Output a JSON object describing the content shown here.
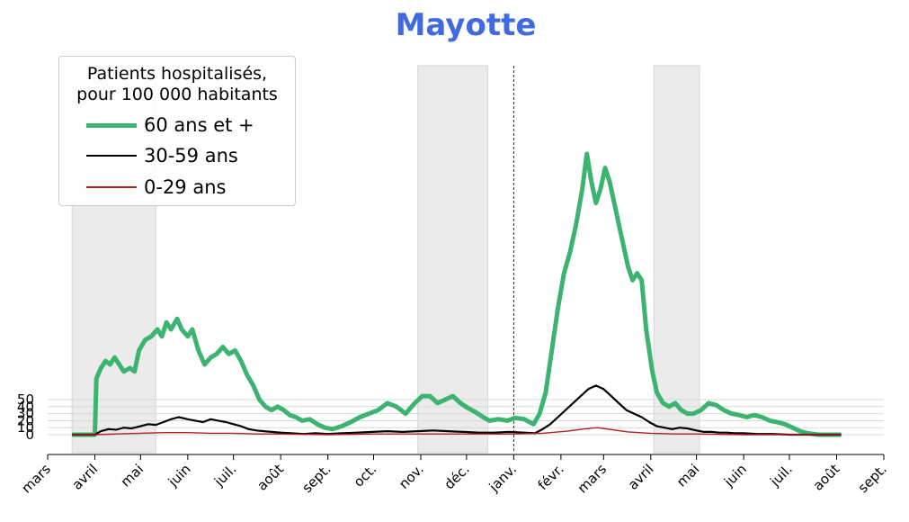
{
  "chart_data": {
    "type": "line",
    "title": "Mayotte",
    "title_color": "#4169e1",
    "legend": {
      "title_lines": [
        "Patients hospitalisés,",
        "pour 100 000 habitants"
      ],
      "placement": "top-left"
    },
    "x_tick_labels": [
      "mars",
      "avril",
      "mai",
      "juin",
      "juil.",
      "août",
      "sept.",
      "oct.",
      "nov.",
      "déc.",
      "janv.",
      "févr.",
      "mars",
      "avril",
      "mai",
      "juin",
      "juil.",
      "août",
      "sept."
    ],
    "x_tick_dates": [
      "2020-03-01",
      "2020-04-01",
      "2020-05-01",
      "2020-06-01",
      "2020-07-01",
      "2020-08-01",
      "2020-09-01",
      "2020-10-01",
      "2020-11-01",
      "2020-12-01",
      "2021-01-01",
      "2021-02-01",
      "2021-03-01",
      "2021-04-01",
      "2021-05-01",
      "2021-06-01",
      "2021-07-01",
      "2021-08-01",
      "2021-09-01"
    ],
    "xlim": [
      "2020-03-01",
      "2021-09-01"
    ],
    "y_ticks": [
      0,
      10,
      20,
      30,
      40,
      50
    ],
    "ylim": [
      -10,
      460
    ],
    "grid": "horizontal",
    "shaded_periods": [
      {
        "start": "2020-03-17",
        "end": "2020-05-11"
      },
      {
        "start": "2020-10-30",
        "end": "2020-12-15"
      },
      {
        "start": "2021-04-03",
        "end": "2021-05-03"
      }
    ],
    "vertical_line_date": "2021-01-01",
    "series": [
      {
        "name": "60 ans et +",
        "color": "#3cb371",
        "points": [
          [
            "2020-03-17",
            0
          ],
          [
            "2020-04-01",
            0
          ],
          [
            "2020-04-02",
            80
          ],
          [
            "2020-04-05",
            95
          ],
          [
            "2020-04-08",
            105
          ],
          [
            "2020-04-11",
            100
          ],
          [
            "2020-04-14",
            110
          ],
          [
            "2020-04-17",
            100
          ],
          [
            "2020-04-20",
            90
          ],
          [
            "2020-04-24",
            95
          ],
          [
            "2020-04-27",
            90
          ],
          [
            "2020-04-30",
            120
          ],
          [
            "2020-05-04",
            135
          ],
          [
            "2020-05-08",
            140
          ],
          [
            "2020-05-12",
            150
          ],
          [
            "2020-05-15",
            140
          ],
          [
            "2020-05-18",
            160
          ],
          [
            "2020-05-21",
            150
          ],
          [
            "2020-05-25",
            165
          ],
          [
            "2020-05-28",
            150
          ],
          [
            "2020-06-01",
            140
          ],
          [
            "2020-06-04",
            150
          ],
          [
            "2020-06-08",
            120
          ],
          [
            "2020-06-12",
            100
          ],
          [
            "2020-06-16",
            110
          ],
          [
            "2020-06-20",
            115
          ],
          [
            "2020-06-24",
            125
          ],
          [
            "2020-06-28",
            115
          ],
          [
            "2020-07-02",
            120
          ],
          [
            "2020-07-06",
            105
          ],
          [
            "2020-07-10",
            85
          ],
          [
            "2020-07-14",
            70
          ],
          [
            "2020-07-18",
            50
          ],
          [
            "2020-07-22",
            40
          ],
          [
            "2020-07-26",
            35
          ],
          [
            "2020-07-30",
            40
          ],
          [
            "2020-08-03",
            35
          ],
          [
            "2020-08-07",
            28
          ],
          [
            "2020-08-11",
            25
          ],
          [
            "2020-08-15",
            20
          ],
          [
            "2020-08-20",
            22
          ],
          [
            "2020-08-25",
            15
          ],
          [
            "2020-08-30",
            10
          ],
          [
            "2020-09-04",
            8
          ],
          [
            "2020-09-10",
            12
          ],
          [
            "2020-09-16",
            18
          ],
          [
            "2020-09-22",
            25
          ],
          [
            "2020-09-28",
            30
          ],
          [
            "2020-10-04",
            35
          ],
          [
            "2020-10-10",
            45
          ],
          [
            "2020-10-16",
            40
          ],
          [
            "2020-10-22",
            30
          ],
          [
            "2020-10-28",
            45
          ],
          [
            "2020-11-02",
            55
          ],
          [
            "2020-11-07",
            55
          ],
          [
            "2020-11-12",
            45
          ],
          [
            "2020-11-17",
            50
          ],
          [
            "2020-11-22",
            55
          ],
          [
            "2020-11-27",
            45
          ],
          [
            "2020-12-02",
            38
          ],
          [
            "2020-12-07",
            32
          ],
          [
            "2020-12-12",
            25
          ],
          [
            "2020-12-16",
            20
          ],
          [
            "2020-12-22",
            22
          ],
          [
            "2020-12-28",
            20
          ],
          [
            "2021-01-02",
            24
          ],
          [
            "2021-01-08",
            22
          ],
          [
            "2021-01-14",
            15
          ],
          [
            "2021-01-18",
            30
          ],
          [
            "2021-01-22",
            60
          ],
          [
            "2021-01-26",
            120
          ],
          [
            "2021-01-30",
            180
          ],
          [
            "2021-02-03",
            230
          ],
          [
            "2021-02-07",
            260
          ],
          [
            "2021-02-11",
            300
          ],
          [
            "2021-02-15",
            350
          ],
          [
            "2021-02-18",
            400
          ],
          [
            "2021-02-21",
            360
          ],
          [
            "2021-02-24",
            330
          ],
          [
            "2021-02-27",
            350
          ],
          [
            "2021-03-02",
            380
          ],
          [
            "2021-03-05",
            360
          ],
          [
            "2021-03-08",
            330
          ],
          [
            "2021-03-11",
            300
          ],
          [
            "2021-03-14",
            270
          ],
          [
            "2021-03-17",
            240
          ],
          [
            "2021-03-20",
            220
          ],
          [
            "2021-03-23",
            230
          ],
          [
            "2021-03-26",
            220
          ],
          [
            "2021-03-29",
            150
          ],
          [
            "2021-04-02",
            90
          ],
          [
            "2021-04-05",
            60
          ],
          [
            "2021-04-09",
            45
          ],
          [
            "2021-04-13",
            40
          ],
          [
            "2021-04-17",
            45
          ],
          [
            "2021-04-21",
            35
          ],
          [
            "2021-04-25",
            30
          ],
          [
            "2021-04-29",
            30
          ],
          [
            "2021-05-04",
            35
          ],
          [
            "2021-05-09",
            45
          ],
          [
            "2021-05-14",
            42
          ],
          [
            "2021-05-19",
            35
          ],
          [
            "2021-05-24",
            30
          ],
          [
            "2021-05-29",
            28
          ],
          [
            "2021-06-03",
            25
          ],
          [
            "2021-06-08",
            28
          ],
          [
            "2021-06-13",
            25
          ],
          [
            "2021-06-18",
            20
          ],
          [
            "2021-06-23",
            18
          ],
          [
            "2021-06-28",
            15
          ],
          [
            "2021-07-03",
            10
          ],
          [
            "2021-07-08",
            5
          ],
          [
            "2021-07-13",
            2
          ],
          [
            "2021-07-20",
            0
          ],
          [
            "2021-08-04",
            0
          ]
        ]
      },
      {
        "name": "30-59 ans",
        "color": "#000000",
        "points": [
          [
            "2020-03-17",
            0
          ],
          [
            "2020-04-01",
            0
          ],
          [
            "2020-04-05",
            5
          ],
          [
            "2020-04-10",
            8
          ],
          [
            "2020-04-15",
            7
          ],
          [
            "2020-04-20",
            10
          ],
          [
            "2020-04-25",
            9
          ],
          [
            "2020-05-01",
            12
          ],
          [
            "2020-05-06",
            15
          ],
          [
            "2020-05-11",
            14
          ],
          [
            "2020-05-16",
            18
          ],
          [
            "2020-05-21",
            22
          ],
          [
            "2020-05-26",
            25
          ],
          [
            "2020-06-01",
            22
          ],
          [
            "2020-06-06",
            20
          ],
          [
            "2020-06-11",
            18
          ],
          [
            "2020-06-16",
            22
          ],
          [
            "2020-06-21",
            20
          ],
          [
            "2020-06-26",
            18
          ],
          [
            "2020-07-01",
            15
          ],
          [
            "2020-07-06",
            12
          ],
          [
            "2020-07-11",
            8
          ],
          [
            "2020-07-16",
            6
          ],
          [
            "2020-07-21",
            5
          ],
          [
            "2020-07-26",
            4
          ],
          [
            "2020-08-01",
            3
          ],
          [
            "2020-08-08",
            2
          ],
          [
            "2020-08-16",
            1
          ],
          [
            "2020-08-24",
            2
          ],
          [
            "2020-09-01",
            1
          ],
          [
            "2020-09-10",
            2
          ],
          [
            "2020-09-20",
            3
          ],
          [
            "2020-09-30",
            4
          ],
          [
            "2020-10-10",
            5
          ],
          [
            "2020-10-20",
            4
          ],
          [
            "2020-10-30",
            5
          ],
          [
            "2020-11-09",
            6
          ],
          [
            "2020-11-19",
            5
          ],
          [
            "2020-11-29",
            4
          ],
          [
            "2020-12-09",
            3
          ],
          [
            "2020-12-19",
            3
          ],
          [
            "2020-12-29",
            4
          ],
          [
            "2021-01-08",
            3
          ],
          [
            "2021-01-15",
            2
          ],
          [
            "2021-01-20",
            8
          ],
          [
            "2021-01-25",
            15
          ],
          [
            "2021-01-30",
            25
          ],
          [
            "2021-02-04",
            35
          ],
          [
            "2021-02-09",
            45
          ],
          [
            "2021-02-14",
            55
          ],
          [
            "2021-02-19",
            65
          ],
          [
            "2021-02-24",
            70
          ],
          [
            "2021-03-01",
            65
          ],
          [
            "2021-03-06",
            55
          ],
          [
            "2021-03-11",
            45
          ],
          [
            "2021-03-16",
            35
          ],
          [
            "2021-03-21",
            30
          ],
          [
            "2021-03-26",
            25
          ],
          [
            "2021-03-31",
            18
          ],
          [
            "2021-04-05",
            12
          ],
          [
            "2021-04-10",
            10
          ],
          [
            "2021-04-15",
            8
          ],
          [
            "2021-04-20",
            10
          ],
          [
            "2021-04-25",
            9
          ],
          [
            "2021-05-01",
            6
          ],
          [
            "2021-05-06",
            4
          ],
          [
            "2021-05-11",
            4
          ],
          [
            "2021-05-16",
            3
          ],
          [
            "2021-05-21",
            3
          ],
          [
            "2021-05-26",
            2
          ],
          [
            "2021-06-01",
            2
          ],
          [
            "2021-06-10",
            1
          ],
          [
            "2021-06-20",
            1
          ],
          [
            "2021-07-01",
            0
          ],
          [
            "2021-08-04",
            0
          ]
        ]
      },
      {
        "name": "0-29 ans",
        "color": "#b22222",
        "points": [
          [
            "2020-03-17",
            0
          ],
          [
            "2020-04-01",
            0
          ],
          [
            "2020-04-15",
            1
          ],
          [
            "2020-05-01",
            2
          ],
          [
            "2020-05-16",
            3
          ],
          [
            "2020-06-01",
            3
          ],
          [
            "2020-06-16",
            2
          ],
          [
            "2020-07-01",
            2
          ],
          [
            "2020-07-16",
            1
          ],
          [
            "2020-08-01",
            1
          ],
          [
            "2020-09-01",
            0
          ],
          [
            "2020-10-01",
            1
          ],
          [
            "2020-11-01",
            1
          ],
          [
            "2020-12-01",
            1
          ],
          [
            "2021-01-01",
            1
          ],
          [
            "2021-01-20",
            2
          ],
          [
            "2021-02-05",
            5
          ],
          [
            "2021-02-15",
            8
          ],
          [
            "2021-02-25",
            10
          ],
          [
            "2021-03-07",
            7
          ],
          [
            "2021-03-17",
            4
          ],
          [
            "2021-04-01",
            2
          ],
          [
            "2021-04-16",
            1
          ],
          [
            "2021-05-01",
            1
          ],
          [
            "2021-06-01",
            0
          ],
          [
            "2021-08-04",
            0
          ]
        ]
      }
    ]
  }
}
